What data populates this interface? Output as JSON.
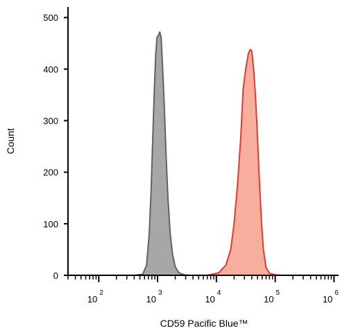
{
  "chart_data": {
    "type": "area",
    "xlabel": "CD59 Pacific Blue™",
    "ylabel": "Count",
    "x_scale": "log",
    "xlim": [
      30,
      1200000
    ],
    "ylim": [
      0,
      510
    ],
    "y_ticks": [
      {
        "value": 0,
        "label": "0"
      },
      {
        "value": 100,
        "label": "100"
      },
      {
        "value": 200,
        "label": "200"
      },
      {
        "value": 300,
        "label": "300"
      },
      {
        "value": 400,
        "label": "400"
      },
      {
        "value": 500,
        "label": "500"
      }
    ],
    "x_ticks": [
      {
        "value": 100,
        "base": "10",
        "exp": "2"
      },
      {
        "value": 1000,
        "base": "10",
        "exp": "3"
      },
      {
        "value": 10000,
        "base": "10",
        "exp": "4"
      },
      {
        "value": 100000,
        "base": "10",
        "exp": "5"
      },
      {
        "value": 1000000,
        "base": "10",
        "exp": "6"
      }
    ],
    "grid": false,
    "legend": "none",
    "series": [
      {
        "fill": "#a8a7a7",
        "stroke": "#616161",
        "points": [
          [
            30,
            0
          ],
          [
            400,
            0
          ],
          [
            560,
            2
          ],
          [
            650,
            20
          ],
          [
            720,
            80
          ],
          [
            780,
            170
          ],
          [
            830,
            270
          ],
          [
            880,
            360
          ],
          [
            930,
            430
          ],
          [
            980,
            462
          ],
          [
            1030,
            465
          ],
          [
            1090,
            472
          ],
          [
            1150,
            462
          ],
          [
            1220,
            400
          ],
          [
            1300,
            330
          ],
          [
            1400,
            230
          ],
          [
            1500,
            150
          ],
          [
            1640,
            80
          ],
          [
            1800,
            40
          ],
          [
            2000,
            16
          ],
          [
            2300,
            5
          ],
          [
            2800,
            1
          ],
          [
            3500,
            0
          ],
          [
            1200000,
            0
          ]
        ]
      },
      {
        "fill": "#f7ae9c",
        "stroke": "#e03a2f",
        "points": [
          [
            30,
            0
          ],
          [
            7000,
            0
          ],
          [
            11000,
            5
          ],
          [
            14500,
            20
          ],
          [
            17500,
            50
          ],
          [
            20000,
            100
          ],
          [
            23000,
            180
          ],
          [
            26000,
            270
          ],
          [
            28500,
            360
          ],
          [
            31500,
            400
          ],
          [
            35000,
            430
          ],
          [
            37500,
            438
          ],
          [
            40000,
            435
          ],
          [
            43000,
            400
          ],
          [
            46000,
            350
          ],
          [
            49000,
            290
          ],
          [
            53000,
            200
          ],
          [
            58000,
            110
          ],
          [
            63000,
            50
          ],
          [
            70000,
            15
          ],
          [
            80000,
            4
          ],
          [
            100000,
            1
          ],
          [
            130000,
            0
          ],
          [
            1200000,
            0
          ]
        ]
      }
    ]
  }
}
